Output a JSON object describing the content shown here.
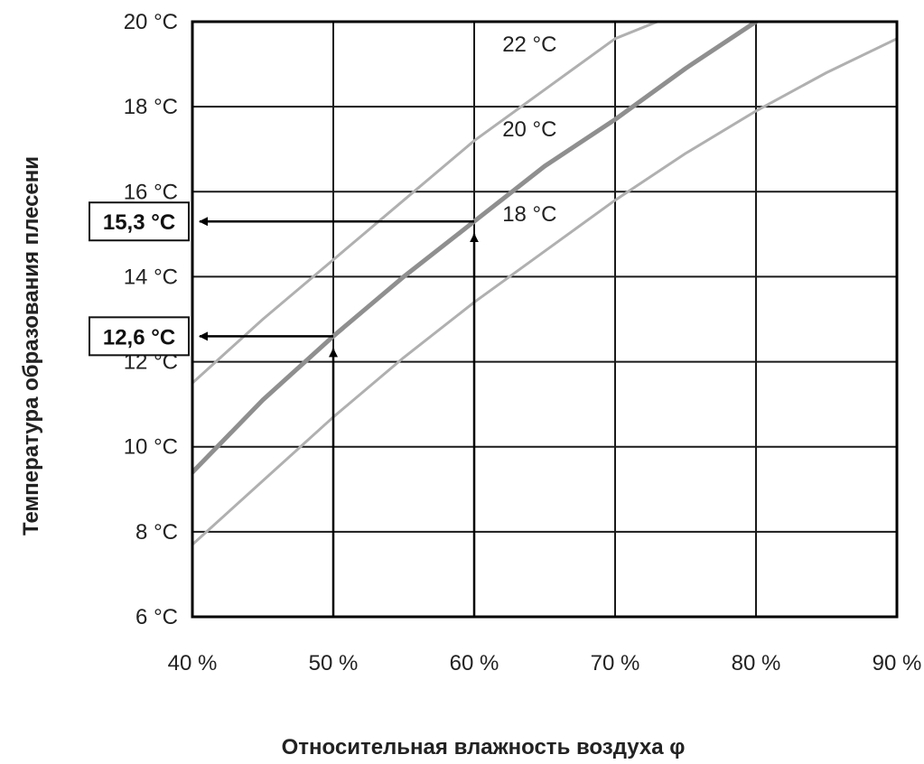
{
  "chart_data": {
    "type": "line",
    "xlabel": "Относительная влажность воздуха φ",
    "ylabel": "Температура образования плесени",
    "xlim": [
      40,
      90
    ],
    "ylim": [
      6,
      20
    ],
    "x_ticks": [
      "40 %",
      "50 %",
      "60 %",
      "70 %",
      "80 %",
      "90 %"
    ],
    "y_ticks": [
      "6 °C",
      "8 °C",
      "10 °C",
      "12 °C",
      "14 °C",
      "16 °C",
      "18 °C",
      "20 °C"
    ],
    "grid": true,
    "series": [
      {
        "name": "22 °C",
        "color": "#b0b0b0",
        "x": [
          40,
          45,
          50,
          55,
          60,
          65,
          70,
          73
        ],
        "y": [
          11.5,
          13.0,
          14.4,
          15.8,
          17.2,
          18.4,
          19.6,
          20.0
        ]
      },
      {
        "name": "20 °C",
        "color": "#8f8f8f",
        "x": [
          40,
          45,
          50,
          55,
          60,
          65,
          70,
          75,
          80
        ],
        "y": [
          9.4,
          11.1,
          12.6,
          14.0,
          15.3,
          16.6,
          17.7,
          18.9,
          20.0
        ]
      },
      {
        "name": "18 °C",
        "color": "#b0b0b0",
        "x": [
          40,
          45,
          50,
          55,
          60,
          65,
          70,
          75,
          80,
          85,
          90
        ],
        "y": [
          7.7,
          9.2,
          10.7,
          12.1,
          13.4,
          14.6,
          15.8,
          16.9,
          17.9,
          18.8,
          19.6
        ]
      }
    ],
    "curve_labels": [
      {
        "text": "22 °C",
        "x": 62,
        "y": 19.3
      },
      {
        "text": "20 °C",
        "x": 62,
        "y": 17.3
      },
      {
        "text": "18 °C",
        "x": 62,
        "y": 15.3
      }
    ],
    "annotations": [
      {
        "label": "15,3 °C",
        "humidity": 60,
        "value": 15.3
      },
      {
        "label": "12,6 °C",
        "humidity": 50,
        "value": 12.6
      }
    ]
  }
}
